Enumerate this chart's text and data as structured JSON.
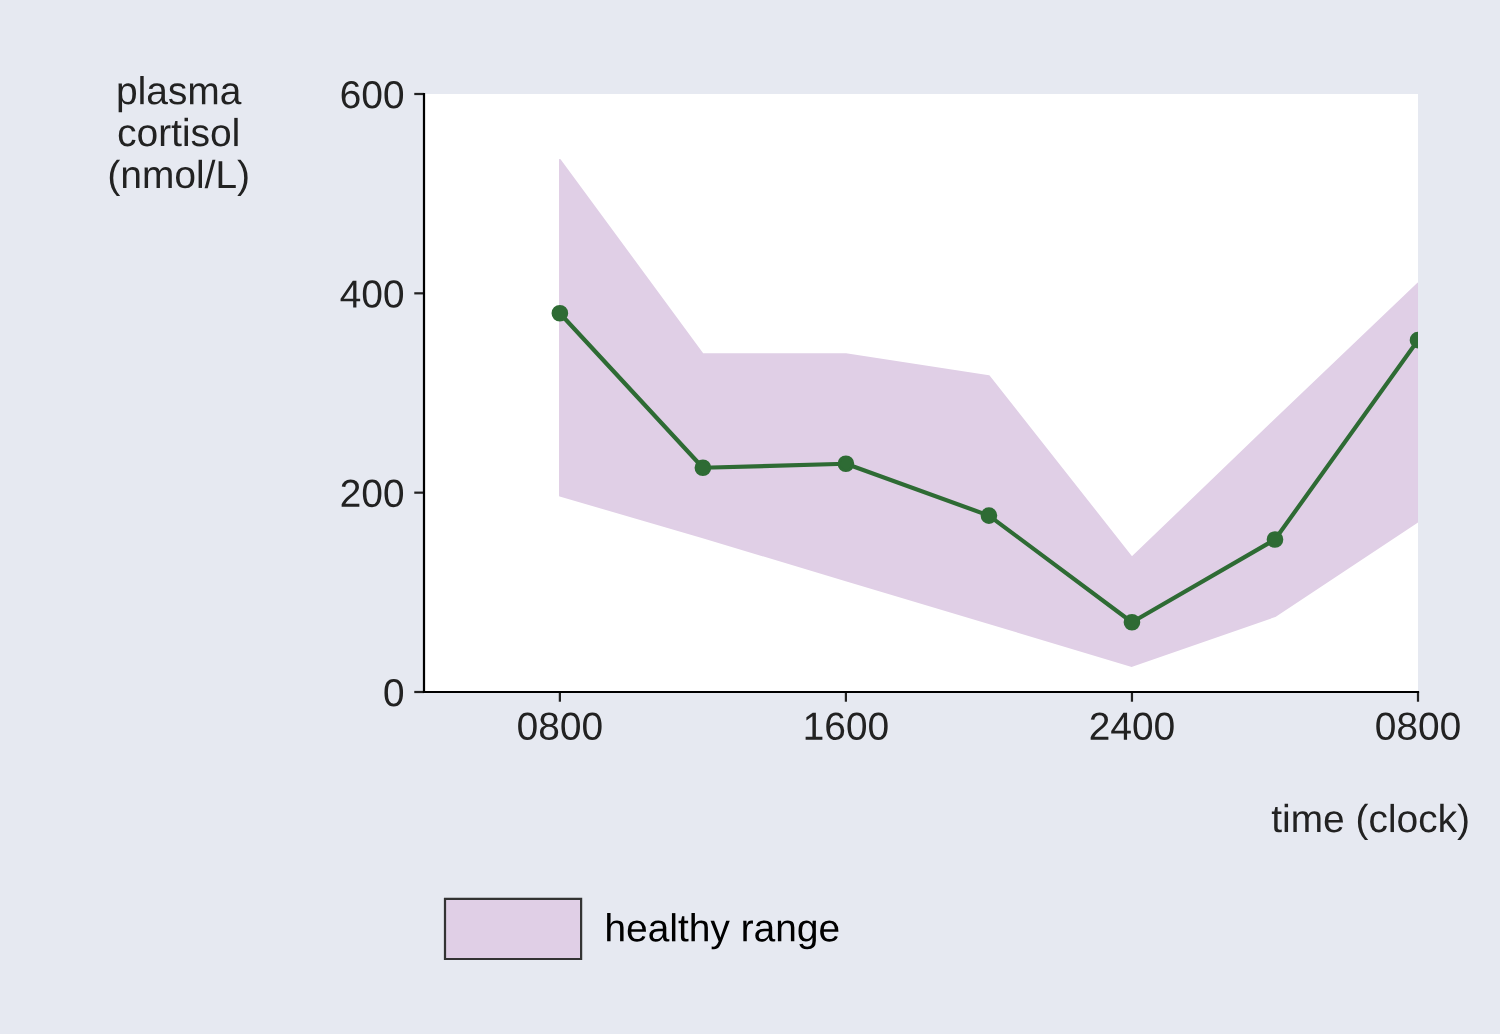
{
  "chart_data": {
    "type": "line",
    "xlabel": "time (clock)",
    "ylabel": "plasma\ncortisol\n(nmol/L)",
    "categories": [
      "0800",
      null,
      "1600",
      null,
      "2400",
      null,
      "0800"
    ],
    "ylim": [
      0,
      600
    ],
    "yticks": [
      0,
      200,
      400,
      600
    ],
    "series": [
      {
        "type": "area",
        "name": "healthy range",
        "color": "#e0cfe6",
        "lower": [
          197,
          155,
          112,
          69,
          26,
          76,
          171
        ],
        "upper": [
          534,
          339,
          339,
          317,
          135,
          273,
          410
        ],
        "values": [
          null,
          null,
          null,
          null,
          null,
          null,
          null
        ]
      },
      {
        "type": "line",
        "color": "#2e6b34",
        "marker": "circle",
        "values": [
          380,
          225,
          229,
          177,
          70,
          153,
          353
        ]
      }
    ],
    "line_style": "solid",
    "grid": false,
    "legend": "bottom"
  }
}
